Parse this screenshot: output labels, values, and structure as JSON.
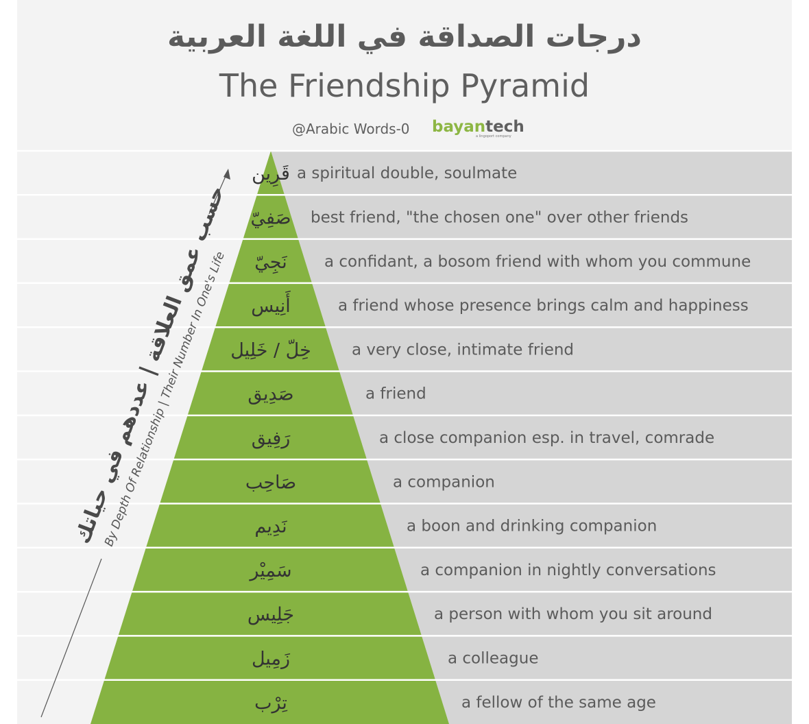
{
  "header": {
    "title_ar": "درجات الصداقة في اللغة العربية",
    "title_en": "The Friendship Pyramid",
    "handle": "@Arabic Words-0",
    "brand_main": "bayan",
    "brand_accent": "tech",
    "brand_sub": "a lingoport company"
  },
  "side": {
    "label_ar": "حسب عمق العلاقة | عددهم في حياتك",
    "label_en": "By Depth Of Relationship | Their Number In One's Life"
  },
  "colors": {
    "pyramid": "#86b342",
    "band": "#d5d5d5",
    "panel": "#f3f3f3",
    "text": "#5b5b5b"
  },
  "levels": [
    {
      "ar": "قَرِين",
      "en": "a spiritual double, soulmate"
    },
    {
      "ar": "صَفِيّ",
      "en": "best friend, \"the chosen one\" over other friends"
    },
    {
      "ar": "نَجِيّ",
      "en": "a confidant, a bosom friend with whom you commune"
    },
    {
      "ar": "أَنِيس",
      "en": "a friend whose presence brings calm and happiness"
    },
    {
      "ar": "خِلّ / خَلِيل",
      "en": "a very close, intimate friend"
    },
    {
      "ar": "صَدِيق",
      "en": "a friend"
    },
    {
      "ar": "رَفِيق",
      "en": "a close companion esp. in travel, comrade"
    },
    {
      "ar": "صَاحِب",
      "en": "a companion"
    },
    {
      "ar": "نَدِيم",
      "en": "a boon and drinking companion"
    },
    {
      "ar": "سَمِيْر",
      "en": "a companion in nightly conversations"
    },
    {
      "ar": "جَلِيس",
      "en": "a person with whom you sit around"
    },
    {
      "ar": "زَمِيل",
      "en": "a colleague"
    },
    {
      "ar": "تِرْب",
      "en": "a fellow of the same age"
    }
  ]
}
